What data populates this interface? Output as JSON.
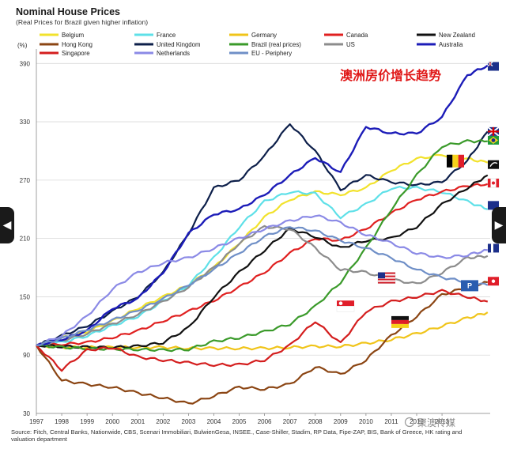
{
  "chart_data": {
    "type": "line",
    "title": "Nominal House Prices",
    "subtitle": "(Real  Prices for Brazil given higher inflation)",
    "ylabel": "(%)",
    "annotation": "澳洲房价增长趋势",
    "source": "Source: Fitch, Central Banks, Nationwide, CBS, Scenari Immobiliari, BulwienGesa, INSEE., Case-Shiller, Stadim, RP Data, Fipe-ZAP, BIS, Bank of Greece, HK rating and valuation department",
    "watermark": "聚澳传媒",
    "xlim": [
      1997,
      2014.9
    ],
    "ylim": [
      30,
      400
    ],
    "yticks": [
      30,
      90,
      150,
      210,
      270,
      330,
      390
    ],
    "xticks": [
      1997,
      1998,
      1999,
      2000,
      2001,
      2002,
      2003,
      2004,
      2005,
      2006,
      2007,
      2008,
      2009,
      2010,
      2011,
      2012,
      2013
    ],
    "grid": true,
    "legend_position": "top",
    "series": [
      {
        "name": "Belgium",
        "color": "#f2e22c",
        "width": 2.2,
        "x": [
          1997,
          1998,
          1999,
          2000,
          2001,
          2002,
          2003,
          2004,
          2005,
          2006,
          2007,
          2008,
          2009,
          2010,
          2011,
          2012,
          2013,
          2014,
          2014.8
        ],
        "y": [
          100,
          108,
          114,
          125,
          138,
          150,
          162,
          180,
          205,
          232,
          250,
          258,
          255,
          262,
          280,
          292,
          296,
          292,
          288
        ]
      },
      {
        "name": "France",
        "color": "#5ee0e8",
        "width": 2.2,
        "x": [
          1997,
          1998,
          1999,
          2000,
          2001,
          2002,
          2003,
          2004,
          2005,
          2006,
          2007,
          2008,
          2009,
          2010,
          2011,
          2012,
          2013,
          2014,
          2014.8
        ],
        "y": [
          100,
          103,
          110,
          120,
          130,
          145,
          162,
          190,
          222,
          248,
          258,
          256,
          232,
          245,
          262,
          262,
          258,
          248,
          240
        ]
      },
      {
        "name": "Germany",
        "color": "#f0c419",
        "width": 2.2,
        "x": [
          1997,
          1998,
          1999,
          2000,
          2001,
          2002,
          2003,
          2004,
          2005,
          2006,
          2007,
          2008,
          2009,
          2010,
          2011,
          2012,
          2013,
          2014,
          2014.8
        ],
        "y": [
          100,
          98,
          98,
          98,
          98,
          98,
          97,
          97,
          97,
          97,
          98,
          99,
          99,
          102,
          106,
          112,
          120,
          128,
          134
        ]
      },
      {
        "name": "Canada",
        "color": "#e02020",
        "width": 2.2,
        "x": [
          1997,
          1998,
          1999,
          2000,
          2001,
          2002,
          2003,
          2004,
          2005,
          2006,
          2007,
          2008,
          2009,
          2010,
          2011,
          2012,
          2013,
          2014,
          2014.8
        ],
        "y": [
          100,
          101,
          103,
          108,
          115,
          125,
          135,
          146,
          160,
          175,
          195,
          210,
          208,
          220,
          236,
          250,
          258,
          264,
          266
        ]
      },
      {
        "name": "New Zealand",
        "color": "#111111",
        "width": 2.2,
        "x": [
          1997,
          1998,
          1999,
          2000,
          2001,
          2002,
          2003,
          2004,
          2005,
          2006,
          2007,
          2008,
          2009,
          2010,
          2011,
          2012,
          2013,
          2014,
          2014.8
        ],
        "y": [
          100,
          99,
          98,
          98,
          99,
          103,
          118,
          150,
          175,
          198,
          220,
          212,
          200,
          208,
          210,
          222,
          245,
          262,
          275
        ]
      },
      {
        "name": "Hong Kong",
        "color": "#8b4513",
        "width": 2.2,
        "x": [
          1997,
          1998,
          1999,
          2000,
          2001,
          2002,
          2003,
          2004,
          2005,
          2006,
          2007,
          2008,
          2009,
          2010,
          2011,
          2012,
          2013,
          2014,
          2014.8
        ],
        "y": [
          100,
          64,
          60,
          57,
          51,
          46,
          40,
          48,
          57,
          55,
          60,
          78,
          70,
          85,
          110,
          130,
          152,
          160,
          165
        ]
      },
      {
        "name": "United Kingdom",
        "color": "#0d1f4a",
        "width": 2.2,
        "x": [
          1997,
          1998,
          1999,
          2000,
          2001,
          2002,
          2003,
          2004,
          2005,
          2006,
          2007,
          2008,
          2009,
          2010,
          2011,
          2012,
          2013,
          2014,
          2014.8
        ],
        "y": [
          100,
          110,
          120,
          135,
          150,
          175,
          215,
          262,
          270,
          295,
          328,
          300,
          260,
          275,
          268,
          265,
          268,
          290,
          320
        ]
      },
      {
        "name": "Brazil (real prices)",
        "color": "#3a9a2a",
        "width": 2.2,
        "x": [
          1997,
          1998,
          1999,
          2000,
          2001,
          2002,
          2003,
          2004,
          2005,
          2006,
          2007,
          2008,
          2009,
          2010,
          2011,
          2012,
          2013,
          2014,
          2014.8
        ],
        "y": [
          100,
          98,
          97,
          96,
          96,
          95,
          96,
          104,
          108,
          114,
          122,
          140,
          165,
          200,
          240,
          275,
          305,
          310,
          310
        ]
      },
      {
        "name": "US",
        "color": "#8c8c8c",
        "width": 2.2,
        "x": [
          1997,
          1998,
          1999,
          2000,
          2001,
          2002,
          2003,
          2004,
          2005,
          2006,
          2007,
          2008,
          2009,
          2010,
          2011,
          2012,
          2013,
          2014,
          2014.8
        ],
        "y": [
          100,
          105,
          112,
          122,
          132,
          145,
          160,
          180,
          205,
          222,
          220,
          200,
          178,
          175,
          168,
          163,
          175,
          190,
          192
        ]
      },
      {
        "name": "Australia",
        "color": "#1c1cb8",
        "width": 2.4,
        "x": [
          1997,
          1998,
          1999,
          2000,
          2001,
          2002,
          2003,
          2004,
          2005,
          2006,
          2007,
          2008,
          2009,
          2010,
          2011,
          2012,
          2013,
          2014,
          2014.8
        ],
        "y": [
          100,
          106,
          115,
          138,
          148,
          175,
          215,
          235,
          240,
          255,
          275,
          293,
          278,
          325,
          318,
          318,
          335,
          378,
          388
        ]
      },
      {
        "name": "Singapore",
        "color": "#d41e1e",
        "width": 2.2,
        "x": [
          1997,
          1998,
          1999,
          2000,
          2001,
          2002,
          2003,
          2004,
          2005,
          2006,
          2007,
          2008,
          2009,
          2010,
          2011,
          2012,
          2013,
          2014,
          2014.8
        ],
        "y": [
          100,
          75,
          95,
          98,
          88,
          85,
          82,
          80,
          80,
          85,
          100,
          125,
          102,
          135,
          145,
          150,
          156,
          150,
          145
        ]
      },
      {
        "name": "Netherlands",
        "color": "#8b8ae6",
        "width": 2.2,
        "x": [
          1997,
          1998,
          1999,
          2000,
          2001,
          2002,
          2003,
          2004,
          2005,
          2006,
          2007,
          2008,
          2009,
          2010,
          2011,
          2012,
          2013,
          2014,
          2014.8
        ],
        "y": [
          100,
          110,
          130,
          158,
          175,
          185,
          190,
          200,
          210,
          220,
          228,
          234,
          226,
          214,
          205,
          195,
          190,
          193,
          198
        ]
      },
      {
        "name": "EU - Periphery",
        "color": "#6f8fc7",
        "width": 2.2,
        "x": [
          1997,
          1998,
          1999,
          2000,
          2001,
          2002,
          2003,
          2004,
          2005,
          2006,
          2007,
          2008,
          2009,
          2010,
          2011,
          2012,
          2013,
          2014,
          2014.8
        ],
        "y": [
          100,
          107,
          116,
          126,
          136,
          148,
          162,
          178,
          195,
          212,
          222,
          218,
          208,
          200,
          190,
          178,
          170,
          165,
          162
        ]
      }
    ],
    "flags": [
      {
        "name": "australia-flag",
        "y": 387
      },
      {
        "name": "uk-flag",
        "y": 320
      },
      {
        "name": "brazil-flag",
        "y": 311
      },
      {
        "name": "belgium-flag",
        "y": 290
      },
      {
        "name": "nz-flag",
        "y": 286
      },
      {
        "name": "canada-flag",
        "y": 267
      },
      {
        "name": "france-flag",
        "y": 244
      },
      {
        "name": "partial-flag",
        "y": 200
      },
      {
        "name": "us-flag",
        "y": 169
      },
      {
        "name": "eu-periphery-marker",
        "y": 161
      },
      {
        "name": "hongkong-flag",
        "y": 166
      },
      {
        "name": "singapore-flag",
        "y": 140
      },
      {
        "name": "germany-flag",
        "y": 124
      }
    ],
    "flag_labels": {
      "eu-periphery-marker": "P"
    }
  },
  "nav": {
    "prev_icon": "◀",
    "next_icon": "▶"
  }
}
